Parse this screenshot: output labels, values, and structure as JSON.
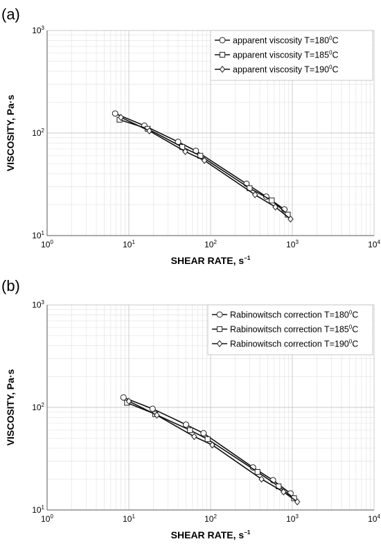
{
  "chart_data": [
    {
      "type": "line",
      "panel_label": "(a)",
      "xlabel": "SHEAR RATE, s",
      "xlabel_sup": "−1",
      "ylabel": "VISCOSITY, Pa·s",
      "xscale": "log",
      "yscale": "log",
      "xlim": [
        1,
        10000
      ],
      "ylim": [
        10,
        1000
      ],
      "x_ticks": [
        {
          "base": "10",
          "exp": "0"
        },
        {
          "base": "10",
          "exp": "1"
        },
        {
          "base": "10",
          "exp": "2"
        },
        {
          "base": "10",
          "exp": "3"
        },
        {
          "base": "10",
          "exp": "4"
        }
      ],
      "y_ticks": [
        {
          "base": "10",
          "exp": "1"
        },
        {
          "base": "10",
          "exp": "2"
        },
        {
          "base": "10",
          "exp": "3"
        }
      ],
      "grid": true,
      "legend_position": "top-right",
      "series": [
        {
          "name": "apparent viscosity T=180",
          "name_sup": "0",
          "name_unit": "C",
          "marker": "circle",
          "x": [
            6.8,
            15.5,
            40,
            66,
            275,
            480,
            800
          ],
          "y": [
            155,
            118,
            82,
            67,
            32,
            24,
            18
          ]
        },
        {
          "name": "apparent viscosity T=185",
          "name_sup": "0",
          "name_unit": "C",
          "marker": "square",
          "x": [
            7.7,
            17,
            45,
            75,
            300,
            560,
            880
          ],
          "y": [
            135,
            110,
            73,
            60,
            29,
            22,
            16
          ]
        },
        {
          "name": "apparent viscosity T=190",
          "name_sup": "0",
          "name_unit": "C",
          "marker": "diamond",
          "x": [
            8,
            17.8,
            49,
            84,
            350,
            620,
            950
          ],
          "y": [
            142,
            105,
            66,
            54,
            25,
            19,
            14.5
          ]
        }
      ]
    },
    {
      "type": "line",
      "panel_label": "(b)",
      "xlabel": "SHEAR RATE, s",
      "xlabel_sup": "−1",
      "ylabel": "VISCOSITY, Pa·s",
      "xscale": "log",
      "yscale": "log",
      "xlim": [
        1,
        10000
      ],
      "ylim": [
        10,
        1000
      ],
      "x_ticks": [
        {
          "base": "10",
          "exp": "0"
        },
        {
          "base": "10",
          "exp": "1"
        },
        {
          "base": "10",
          "exp": "2"
        },
        {
          "base": "10",
          "exp": "3"
        },
        {
          "base": "10",
          "exp": "4"
        }
      ],
      "y_ticks": [
        {
          "base": "10",
          "exp": "1"
        },
        {
          "base": "10",
          "exp": "2"
        },
        {
          "base": "10",
          "exp": "3"
        }
      ],
      "grid": true,
      "legend_position": "top-right",
      "series": [
        {
          "name": "Rabinowitsch correction T=180",
          "name_sup": "0",
          "name_unit": "C",
          "marker": "circle",
          "x": [
            8.6,
            19.5,
            50,
            82,
            330,
            580,
            950
          ],
          "y": [
            125,
            97,
            68,
            56,
            26,
            19.5,
            14.5
          ]
        },
        {
          "name": "Rabinowitsch correction T=185",
          "name_sup": "0",
          "name_unit": "C",
          "marker": "square",
          "x": [
            9.5,
            21,
            56,
            92,
            375,
            680,
            1050
          ],
          "y": [
            111,
            86,
            60,
            49,
            23.5,
            17,
            13
          ]
        },
        {
          "name": "Rabinowitsch correction T=190",
          "name_sup": "0",
          "name_unit": "C",
          "marker": "diamond",
          "x": [
            10,
            22,
            63,
            105,
            420,
            780,
            1150
          ],
          "y": [
            115,
            84,
            52,
            43,
            20,
            15,
            12
          ]
        }
      ]
    }
  ]
}
